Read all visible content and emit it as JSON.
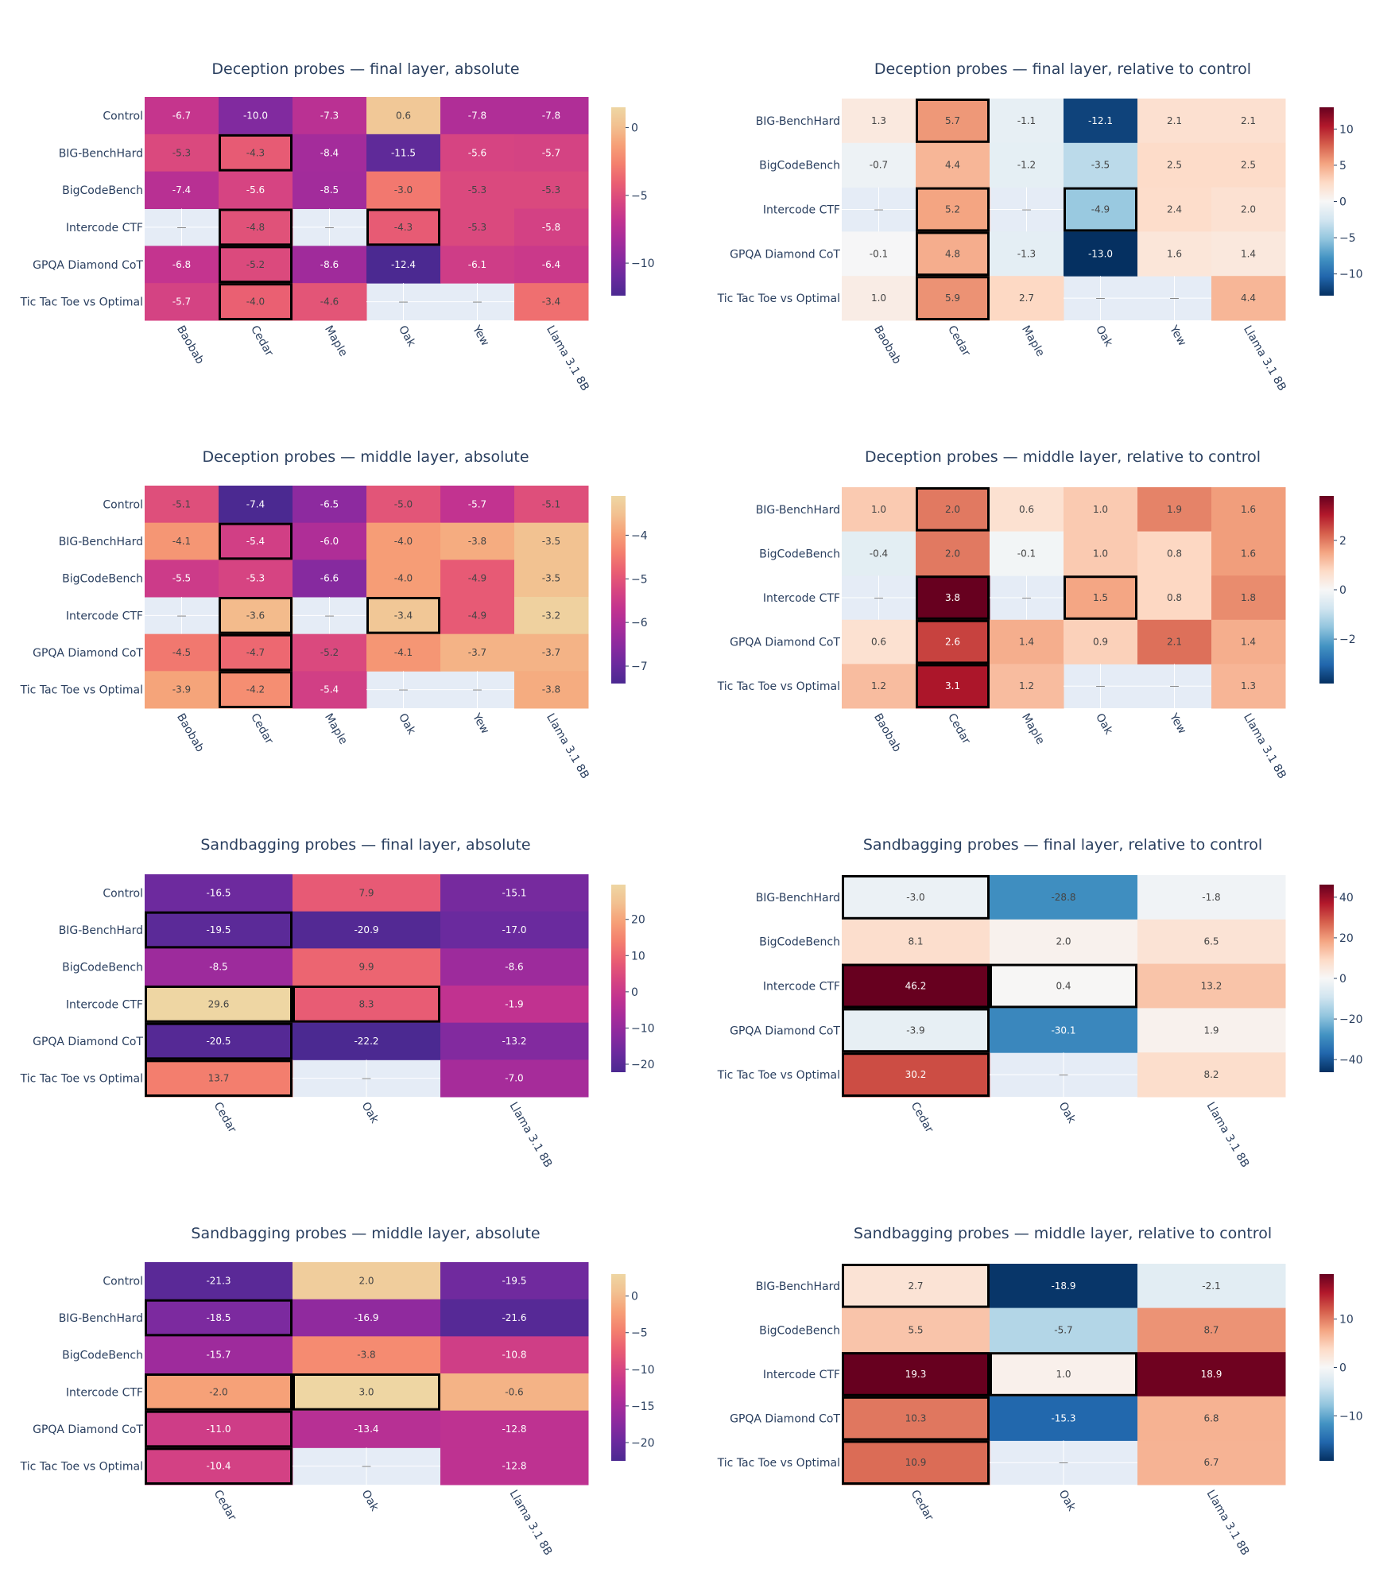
{
  "chart_data": [
    {
      "type": "heatmap",
      "title": "Deception probes — final layer, absolute",
      "rows": [
        "Control",
        "BIG-BenchHard",
        "BigCodeBench",
        "Intercode CTF",
        "GPQA Diamond CoT",
        "Tic Tac Toe vs Optimal"
      ],
      "columns": [
        "Baobab",
        "Cedar",
        "Maple",
        "Oak",
        "Yew",
        "Llama 3.1 8B"
      ],
      "values": [
        [
          -6.7,
          -10.0,
          -7.3,
          0.6,
          -7.8,
          -7.8
        ],
        [
          -5.3,
          -4.3,
          -8.4,
          -11.5,
          -5.6,
          -5.7
        ],
        [
          -7.4,
          -5.6,
          -8.5,
          -3.0,
          -5.3,
          -5.3
        ],
        [
          null,
          -4.8,
          null,
          -4.3,
          -5.3,
          -5.8
        ],
        [
          -6.8,
          -5.2,
          -8.6,
          -12.4,
          -6.1,
          -6.4
        ],
        [
          -5.7,
          -4.0,
          -4.6,
          null,
          null,
          -3.4
        ]
      ],
      "highlighted": [
        [
          1,
          1
        ],
        [
          3,
          1
        ],
        [
          3,
          3
        ],
        [
          4,
          1
        ],
        [
          5,
          1
        ]
      ],
      "colorscale": "plasma",
      "zrange": [
        -12.4,
        1.5
      ],
      "colorbar_ticks": [
        0,
        -5,
        -10
      ],
      "missing_label": "—"
    },
    {
      "type": "heatmap",
      "title": "Deception probes — final layer, relative to control",
      "rows": [
        "BIG-BenchHard",
        "BigCodeBench",
        "Intercode CTF",
        "GPQA Diamond CoT",
        "Tic Tac Toe vs Optimal"
      ],
      "columns": [
        "Baobab",
        "Cedar",
        "Maple",
        "Oak",
        "Yew",
        "Llama 3.1 8B"
      ],
      "values": [
        [
          1.3,
          5.7,
          -1.1,
          -12.1,
          2.1,
          2.1
        ],
        [
          -0.7,
          4.4,
          -1.2,
          -3.5,
          2.5,
          2.5
        ],
        [
          null,
          5.2,
          null,
          -4.9,
          2.4,
          2.0
        ],
        [
          -0.1,
          4.8,
          -1.3,
          -13.0,
          1.6,
          1.4
        ],
        [
          1.0,
          5.9,
          2.7,
          null,
          null,
          4.4
        ]
      ],
      "highlighted": [
        [
          0,
          1
        ],
        [
          2,
          1
        ],
        [
          2,
          3
        ],
        [
          3,
          1
        ],
        [
          4,
          1
        ]
      ],
      "colorscale": "rdbu",
      "zrange": [
        -13.0,
        13.0
      ],
      "colorbar_ticks": [
        10,
        5,
        0,
        -5,
        -10
      ],
      "missing_label": "—"
    },
    {
      "type": "heatmap",
      "title": "Deception probes — middle layer, absolute",
      "rows": [
        "Control",
        "BIG-BenchHard",
        "BigCodeBench",
        "Intercode CTF",
        "GPQA Diamond CoT",
        "Tic Tac Toe vs Optimal"
      ],
      "columns": [
        "Baobab",
        "Cedar",
        "Maple",
        "Oak",
        "Yew",
        "Llama 3.1 8B"
      ],
      "values": [
        [
          -5.1,
          -7.4,
          -6.5,
          -5.0,
          -5.7,
          -5.1
        ],
        [
          -4.1,
          -5.4,
          -6.0,
          -4.0,
          -3.8,
          -3.5
        ],
        [
          -5.5,
          -5.3,
          -6.6,
          -4.0,
          -4.9,
          -3.5
        ],
        [
          null,
          -3.6,
          null,
          -3.4,
          -4.9,
          -3.2
        ],
        [
          -4.5,
          -4.7,
          -5.2,
          -4.1,
          -3.7,
          -3.7
        ],
        [
          -3.9,
          -4.2,
          -5.4,
          null,
          null,
          -3.8
        ]
      ],
      "highlighted": [
        [
          1,
          1
        ],
        [
          3,
          1
        ],
        [
          3,
          3
        ],
        [
          4,
          1
        ],
        [
          5,
          1
        ]
      ],
      "colorscale": "plasma",
      "zrange": [
        -7.4,
        -3.1
      ],
      "colorbar_ticks": [
        -4,
        -5,
        -6,
        -7
      ],
      "missing_label": "—"
    },
    {
      "type": "heatmap",
      "title": "Deception probes — middle layer, relative to control",
      "rows": [
        "BIG-BenchHard",
        "BigCodeBench",
        "Intercode CTF",
        "GPQA Diamond CoT",
        "Tic Tac Toe vs Optimal"
      ],
      "columns": [
        "Baobab",
        "Cedar",
        "Maple",
        "Oak",
        "Yew",
        "Llama 3.1 8B"
      ],
      "values": [
        [
          1.0,
          2.0,
          0.6,
          1.0,
          1.9,
          1.6
        ],
        [
          -0.4,
          2.0,
          -0.1,
          1.0,
          0.8,
          1.6
        ],
        [
          null,
          3.8,
          null,
          1.5,
          0.8,
          1.8
        ],
        [
          0.6,
          2.6,
          1.4,
          0.9,
          2.1,
          1.4
        ],
        [
          1.2,
          3.1,
          1.2,
          null,
          null,
          1.3
        ]
      ],
      "highlighted": [
        [
          0,
          1
        ],
        [
          2,
          1
        ],
        [
          2,
          3
        ],
        [
          3,
          1
        ],
        [
          4,
          1
        ]
      ],
      "colorscale": "rdbu",
      "zrange": [
        -3.8,
        3.8
      ],
      "colorbar_ticks": [
        2,
        0,
        -2
      ],
      "missing_label": "—"
    },
    {
      "type": "heatmap",
      "title": "Sandbagging probes — final layer, absolute",
      "rows": [
        "Control",
        "BIG-BenchHard",
        "BigCodeBench",
        "Intercode CTF",
        "GPQA Diamond CoT",
        "Tic Tac Toe vs Optimal"
      ],
      "columns": [
        "Cedar",
        "Oak",
        "Llama 3.1 8B"
      ],
      "values": [
        [
          -16.5,
          7.9,
          -15.1
        ],
        [
          -19.5,
          -20.9,
          -17.0
        ],
        [
          -8.5,
          9.9,
          -8.6
        ],
        [
          29.6,
          8.3,
          -1.9
        ],
        [
          -20.5,
          -22.2,
          -13.2
        ],
        [
          13.7,
          null,
          -7.0
        ]
      ],
      "highlighted": [
        [
          1,
          0
        ],
        [
          3,
          0
        ],
        [
          3,
          1
        ],
        [
          4,
          0
        ],
        [
          5,
          0
        ]
      ],
      "colorscale": "plasma",
      "zrange": [
        -22.2,
        29.6
      ],
      "colorbar_ticks": [
        20,
        10,
        0,
        -10,
        -20
      ],
      "missing_label": "—"
    },
    {
      "type": "heatmap",
      "title": "Sandbagging probes — final layer, relative to control",
      "rows": [
        "BIG-BenchHard",
        "BigCodeBench",
        "Intercode CTF",
        "GPQA Diamond CoT",
        "Tic Tac Toe vs Optimal"
      ],
      "columns": [
        "Cedar",
        "Oak",
        "Llama 3.1 8B"
      ],
      "values": [
        [
          -3.0,
          -28.8,
          -1.8
        ],
        [
          8.1,
          2.0,
          6.5
        ],
        [
          46.2,
          0.4,
          13.2
        ],
        [
          -3.9,
          -30.1,
          1.9
        ],
        [
          30.2,
          null,
          8.2
        ]
      ],
      "highlighted": [
        [
          0,
          0
        ],
        [
          2,
          0
        ],
        [
          2,
          1
        ],
        [
          3,
          0
        ],
        [
          4,
          0
        ]
      ],
      "colorscale": "rdbu",
      "zrange": [
        -46.2,
        46.2
      ],
      "colorbar_ticks": [
        40,
        20,
        0,
        -20,
        -40
      ],
      "missing_label": "—"
    },
    {
      "type": "heatmap",
      "title": "Sandbagging probes — middle layer, absolute",
      "rows": [
        "Control",
        "BIG-BenchHard",
        "BigCodeBench",
        "Intercode CTF",
        "GPQA Diamond CoT",
        "Tic Tac Toe vs Optimal"
      ],
      "columns": [
        "Cedar",
        "Oak",
        "Llama 3.1 8B"
      ],
      "values": [
        [
          -21.3,
          2.0,
          -19.5
        ],
        [
          -18.5,
          -16.9,
          -21.6
        ],
        [
          -15.7,
          -3.8,
          -10.8
        ],
        [
          -2.0,
          3.0,
          -0.6
        ],
        [
          -11.0,
          -13.4,
          -12.8
        ],
        [
          -10.4,
          null,
          -12.8
        ]
      ],
      "highlighted": [
        [
          1,
          0
        ],
        [
          3,
          0
        ],
        [
          3,
          1
        ],
        [
          4,
          0
        ],
        [
          5,
          0
        ]
      ],
      "colorscale": "plasma",
      "zrange": [
        -22.5,
        3.0
      ],
      "colorbar_ticks": [
        0,
        -5,
        -10,
        -15,
        -20
      ],
      "missing_label": "—"
    },
    {
      "type": "heatmap",
      "title": "Sandbagging probes — middle layer, relative to control",
      "rows": [
        "BIG-BenchHard",
        "BigCodeBench",
        "Intercode CTF",
        "GPQA Diamond CoT",
        "Tic Tac Toe vs Optimal"
      ],
      "columns": [
        "Cedar",
        "Oak",
        "Llama 3.1 8B"
      ],
      "values": [
        [
          2.7,
          -18.9,
          -2.1
        ],
        [
          5.5,
          -5.7,
          8.7
        ],
        [
          19.3,
          1.0,
          18.9
        ],
        [
          10.3,
          -15.3,
          6.8
        ],
        [
          10.9,
          null,
          6.7
        ]
      ],
      "highlighted": [
        [
          0,
          0
        ],
        [
          2,
          0
        ],
        [
          2,
          1
        ],
        [
          3,
          0
        ],
        [
          4,
          0
        ]
      ],
      "colorscale": "rdbu",
      "zrange": [
        -19.3,
        19.3
      ],
      "colorbar_ticks": [
        10,
        0,
        -10
      ],
      "missing_label": "—"
    }
  ]
}
